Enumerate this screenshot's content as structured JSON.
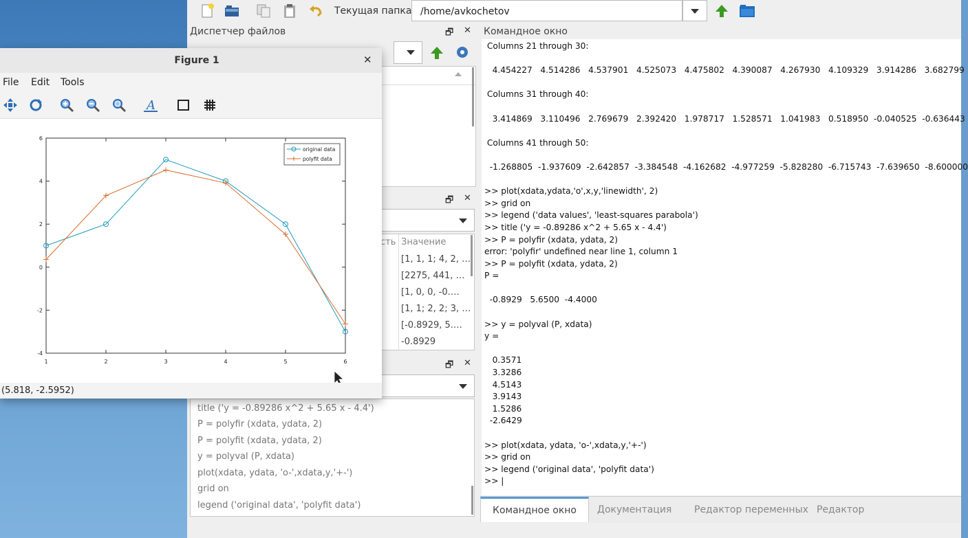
{
  "toolbar": {
    "cwd_label": "Текущая папка:",
    "cwd_value": "/home/avkochetov"
  },
  "file_browser": {
    "title": "Диспетчер файлов"
  },
  "workspace": {
    "col_header_partial": "сть",
    "col_value": "Значение",
    "values": [
      "[1, 1, 1; 4, 2, …",
      "[2275, 441, …",
      "[1, 0, 0, -0.…",
      "[1, 1; 2, 2; 3, …",
      "[-0.8929, 5.…",
      "-0.8929"
    ]
  },
  "history": {
    "items": [
      "title ('y = -0.89286 x^2 + 5.65 x - 4.4')",
      "P = polyfir (xdata, ydata, 2)",
      "P = polyfit (xdata, ydata, 2)",
      "y = polyval (P, xdata)",
      "plot(xdata, ydata, 'o-',xdata,y,'+-')",
      "grid on",
      "legend ('original data', 'polyfit data')"
    ]
  },
  "command_window": {
    "title": "Командное окно",
    "text": " Columns 21 through 30:\n\n   4.454227   4.514286   4.537901   4.525073   4.475802   4.390087   4.267930   4.109329   3.914286   3.682799\n\n Columns 31 through 40:\n\n   3.414869   3.110496   2.769679   2.392420   1.978717   1.528571   1.041983   0.518950  -0.040525  -0.636443\n\n Columns 41 through 50:\n\n  -1.268805  -1.937609  -2.642857  -3.384548  -4.162682  -4.977259  -5.828280  -6.715743  -7.639650  -8.600000\n\n>> plot(xdata,ydata,'o',x,y,'linewidth', 2)\n>> grid on\n>> legend ('data values', 'least-squares parabola')\n>> title ('y = -0.89286 x^2 + 5.65 x - 4.4')\n>> P = polyfir (xdata, ydata, 2)\nerror: 'polyfir' undefined near line 1, column 1\n>> P = polyfit (xdata, ydata, 2)\nP =\n\n  -0.8929   5.6500  -4.4000\n\n>> y = polyval (P, xdata)\ny =\n\n   0.3571\n   3.3286\n   4.5143\n   3.9143\n   1.5286\n  -2.6429\n\n>> plot(xdata, ydata, 'o-',xdata,y,'+-')\n>> grid on\n>> legend ('original data', 'polyfit data')\n>> |"
  },
  "bottom_tabs": [
    "Командное окно",
    "Документация",
    "Редактор переменных",
    "Редактор"
  ],
  "figure": {
    "title": "Figure 1",
    "menu": [
      "File",
      "Edit",
      "Tools"
    ],
    "status": "(5.818, -2.5952)"
  },
  "chart_data": {
    "type": "line",
    "x": [
      1,
      2,
      3,
      4,
      5,
      6
    ],
    "series": [
      {
        "name": "original data",
        "values": [
          1,
          2,
          5,
          4,
          2,
          -3
        ],
        "color": "#1f9ac0",
        "marker": "circle"
      },
      {
        "name": "polyfit data",
        "values": [
          0.3571,
          3.3286,
          4.5143,
          3.9143,
          1.5286,
          -2.6429
        ],
        "color": "#d96a2b",
        "marker": "plus"
      }
    ],
    "xlim": [
      1,
      6
    ],
    "ylim": [
      -4,
      6
    ],
    "xticks": [
      "1",
      "2",
      "3",
      "4",
      "5",
      "6"
    ],
    "yticks": [
      "-4",
      "-2",
      "0",
      "2",
      "4",
      "6"
    ],
    "legend_position": "top-right"
  }
}
